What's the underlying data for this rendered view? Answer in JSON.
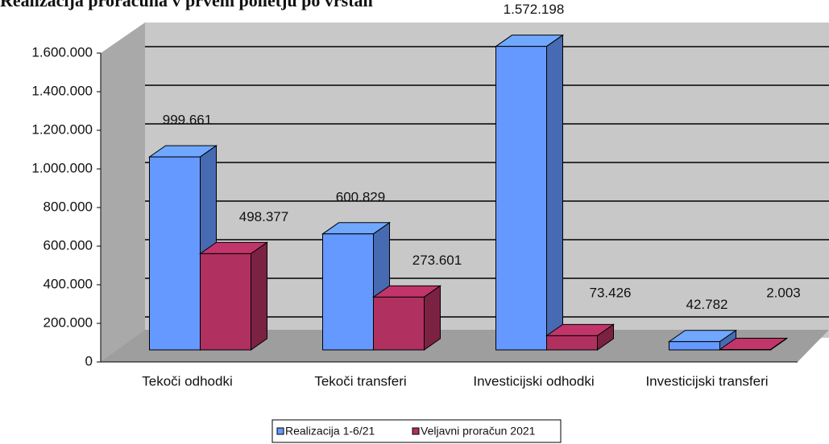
{
  "chart_data": {
    "type": "bar3d",
    "title": "Realizacija proračuna v prvem polletju po vrstah",
    "categories": [
      "Tekoči odhodki",
      "Tekoči transferi",
      "Investicijski odhodki",
      "Investicijski transferi"
    ],
    "series": [
      {
        "name": "Realizacija 1-6/21",
        "color": "#6699ff",
        "values": [
          999661,
          600829,
          1572198,
          42782
        ],
        "value_labels": [
          "999.661",
          "600.829",
          "1.572.198",
          "42.782"
        ]
      },
      {
        "name": "Veljavni proračun 2021",
        "color": "#b03060",
        "values": [
          498377,
          273601,
          73426,
          2003
        ],
        "value_labels": [
          "498.377",
          "273.601",
          "73.426",
          "2.003"
        ]
      }
    ],
    "ylim": [
      0,
      1600000
    ],
    "yticks": [
      0,
      {
        "value": 200000,
        "label": "200.000"
      },
      {
        "value": 400000,
        "label": "400.000"
      },
      {
        "value": 600000,
        "label": "600.000"
      },
      {
        "value": 800000,
        "label": "800.000"
      },
      {
        "value": 1000000,
        "label": "1.000.000"
      },
      {
        "value": 1200000,
        "label": "1.200.000"
      },
      {
        "value": 1400000,
        "label": "1.400.000"
      },
      {
        "value": 1600000,
        "label": "1.600.000"
      }
    ],
    "grid": true,
    "legend": "bottom"
  }
}
